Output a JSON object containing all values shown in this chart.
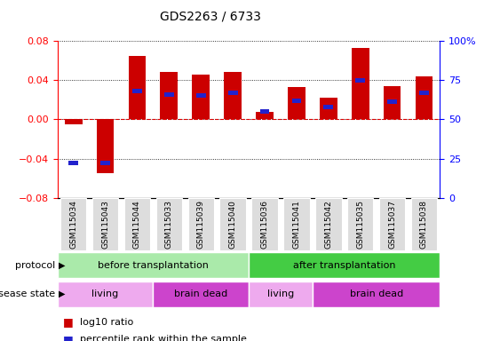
{
  "title": "GDS2263 / 6733",
  "samples": [
    "GSM115034",
    "GSM115043",
    "GSM115044",
    "GSM115033",
    "GSM115039",
    "GSM115040",
    "GSM115036",
    "GSM115041",
    "GSM115042",
    "GSM115035",
    "GSM115037",
    "GSM115038"
  ],
  "log10_ratio": [
    -0.005,
    -0.055,
    0.065,
    0.048,
    0.046,
    0.048,
    0.008,
    0.033,
    0.022,
    0.073,
    0.034,
    0.044
  ],
  "percentile_rank": [
    22,
    22,
    68,
    66,
    65,
    67,
    55,
    62,
    58,
    75,
    61,
    67
  ],
  "ylim": [
    -0.08,
    0.08
  ],
  "yticks_left": [
    -0.08,
    -0.04,
    0,
    0.04,
    0.08
  ],
  "yticks_right": [
    0,
    25,
    50,
    75,
    100
  ],
  "bar_color_red": "#cc0000",
  "bar_color_blue": "#2222cc",
  "protocol_before": {
    "start": 0,
    "end": 6,
    "label": "before transplantation",
    "color": "#aaeaaa"
  },
  "protocol_after": {
    "start": 6,
    "end": 12,
    "label": "after transplantation",
    "color": "#44cc44"
  },
  "disease_segments": [
    {
      "start": 0,
      "end": 3,
      "label": "living",
      "color": "#eeaaee"
    },
    {
      "start": 3,
      "end": 6,
      "label": "brain dead",
      "color": "#cc44cc"
    },
    {
      "start": 6,
      "end": 8,
      "label": "living",
      "color": "#eeaaee"
    },
    {
      "start": 8,
      "end": 12,
      "label": "brain dead",
      "color": "#cc44cc"
    }
  ],
  "legend_red_label": "log10 ratio",
  "legend_blue_label": "percentile rank within the sample",
  "protocol_label": "protocol",
  "disease_state_label": "disease state"
}
